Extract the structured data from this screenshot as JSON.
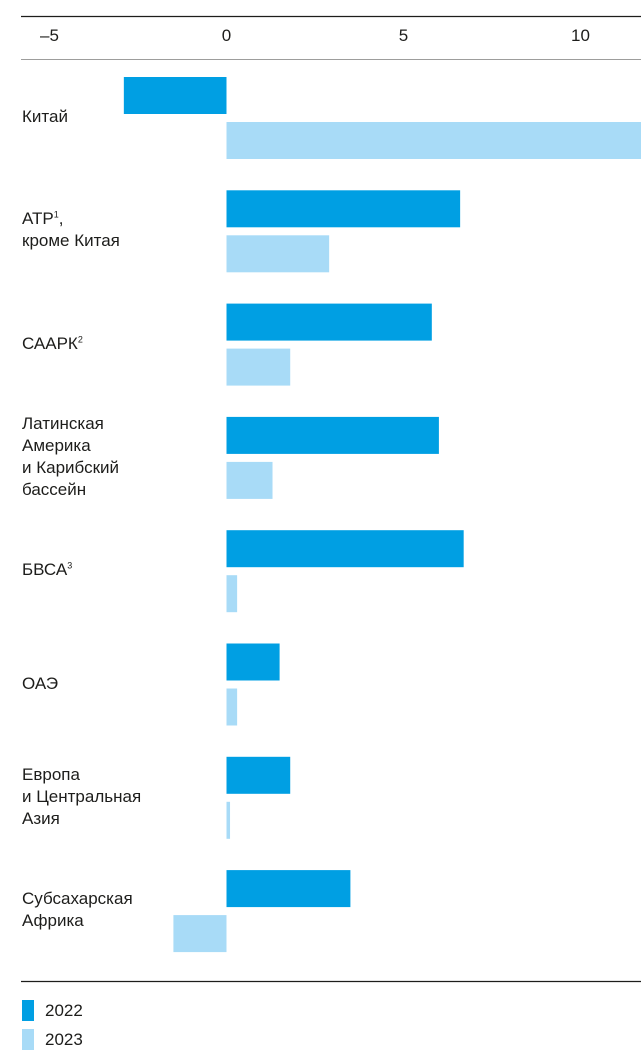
{
  "chart_data": {
    "type": "bar",
    "orientation": "horizontal",
    "xlim": [
      -5.5,
      11.7
    ],
    "xticks": [
      "–5",
      "0",
      "5",
      "10"
    ],
    "xtick_values": [
      -5,
      0,
      5,
      10
    ],
    "grid": false,
    "legend_position": "bottom-left",
    "categories": [
      {
        "label": "Китай",
        "sup": ""
      },
      {
        "label": "АТР",
        "sup": "1",
        "suffix": ",\nкроме Китая"
      },
      {
        "label": "СААРК",
        "sup": "2",
        "suffix": ""
      },
      {
        "label": "Латинская\nАмерика\nи Карибский\nбассейн",
        "sup": "",
        "suffix": ""
      },
      {
        "label": "БВСА",
        "sup": "3",
        "suffix": ""
      },
      {
        "label": "ОАЭ",
        "sup": "",
        "suffix": ""
      },
      {
        "label": "Европа\nи Центральная\nАзия",
        "sup": "",
        "suffix": ""
      },
      {
        "label": "Субсахарская\nАфрика",
        "sup": "",
        "suffix": ""
      }
    ],
    "series": [
      {
        "name": "2022",
        "color": "#009fe3",
        "values": [
          -2.9,
          6.6,
          5.8,
          6.0,
          6.7,
          1.5,
          1.8,
          3.5
        ]
      },
      {
        "name": "2023",
        "color": "#a8dbf7",
        "values": [
          11.8,
          2.9,
          1.8,
          1.3,
          0.3,
          0.3,
          0.1,
          -1.5
        ]
      }
    ]
  }
}
